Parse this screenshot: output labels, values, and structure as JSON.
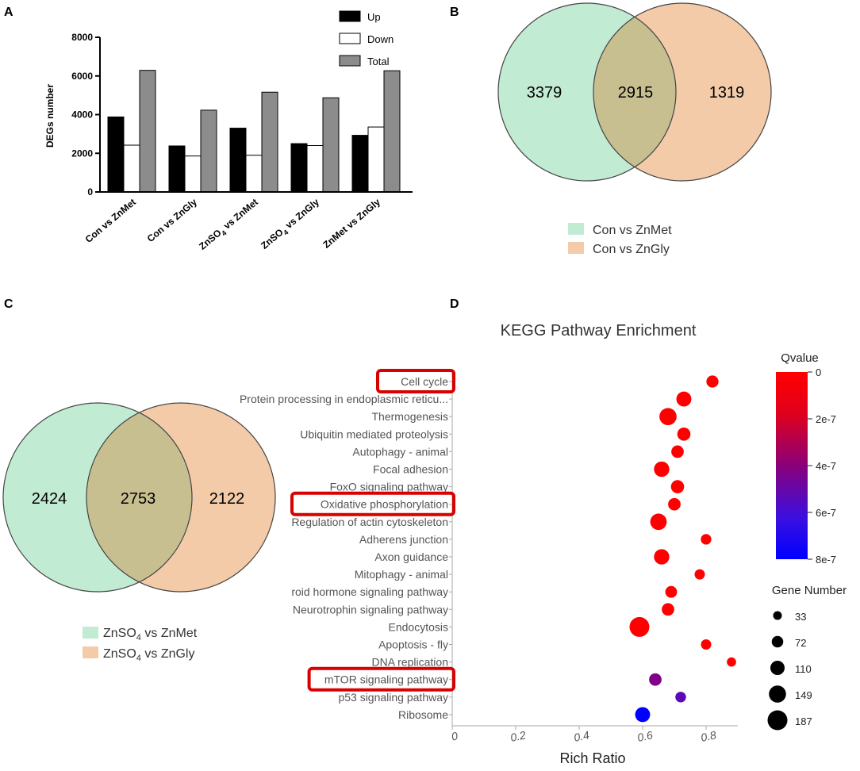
{
  "panels": {
    "a": "A",
    "b": "B",
    "c": "C",
    "d": "D"
  },
  "chart_data": [
    {
      "type": "bar",
      "panel": "A",
      "ylabel": "DEGs number",
      "ylim": [
        0,
        8000
      ],
      "yticks": [
        "0",
        "2000",
        "4000",
        "6000",
        "8000"
      ],
      "categories": [
        "Con vs ZnMet",
        "Con vs ZnGly",
        "ZnSO4 vs ZnMet",
        "ZnSO4 vs ZnGly",
        "ZnMet vs ZnGly"
      ],
      "category_labels": [
        {
          "a": "Con vs ZnMet",
          "sub": "",
          "b": ""
        },
        {
          "a": "Con vs ZnGly",
          "sub": "",
          "b": ""
        },
        {
          "a": "ZnSO",
          "sub": "4",
          "b": " vs ZnMet"
        },
        {
          "a": "ZnSO",
          "sub": "4",
          "b": " vs ZnGly"
        },
        {
          "a": "ZnMet vs ZnGly",
          "sub": "",
          "b": ""
        }
      ],
      "series": [
        {
          "name": "Up",
          "color": "#000000",
          "values": [
            3880,
            2380,
            3300,
            2500,
            2930
          ]
        },
        {
          "name": "Down",
          "color": "#ffffff",
          "values": [
            2420,
            1860,
            1900,
            2400,
            3360
          ]
        },
        {
          "name": "Total",
          "color": "#8c8c8c",
          "values": [
            6290,
            4230,
            5160,
            4870,
            6270
          ]
        }
      ],
      "legend_position": "top-right"
    },
    {
      "type": "venn",
      "panel": "B",
      "sets": [
        {
          "label": "Con vs ZnMet",
          "label_a": "Con vs ZnMet",
          "label_sub": "",
          "label_b": "",
          "color": "#c2ebd3",
          "only": "3379"
        },
        {
          "label": "Con vs ZnGly",
          "label_a": "Con vs ZnGly",
          "label_sub": "",
          "label_b": "",
          "color": "#f3cba9",
          "only": "1319"
        }
      ],
      "intersection": "2915",
      "overlap_color": "#c8bf91"
    },
    {
      "type": "venn",
      "panel": "C",
      "sets": [
        {
          "label": "ZnSO4 vs ZnMet",
          "label_a": "ZnSO",
          "label_sub": "4",
          "label_b": " vs ZnMet",
          "color": "#c2ebd3",
          "only": "2424"
        },
        {
          "label": "ZnSO4 vs ZnGly",
          "label_a": "ZnSO",
          "label_sub": "4",
          "label_b": " vs ZnGly",
          "color": "#f3cba9",
          "only": "2122"
        }
      ],
      "intersection": "2753",
      "overlap_color": "#c8bf91"
    },
    {
      "type": "scatter",
      "panel": "D",
      "title": "KEGG Pathway Enrichment",
      "xlabel": "Rich Ratio",
      "xlim": [
        0,
        0.9
      ],
      "xticks": [
        0,
        0.2,
        0.4,
        0.6,
        0.8
      ],
      "xtick_labels": [
        "0",
        "0.2",
        "0.4",
        "0.6",
        "0.8"
      ],
      "color_title": "Qvalue",
      "color_ticks": [
        "0",
        "2e-7",
        "4e-7",
        "6e-7",
        "8e-7"
      ],
      "color_range": [
        0,
        8e-07
      ],
      "size_title": "Gene Number",
      "size_legend": [
        {
          "label": "33",
          "value": 33
        },
        {
          "label": "72",
          "value": 72
        },
        {
          "label": "110",
          "value": 110
        },
        {
          "label": "149",
          "value": 149
        },
        {
          "label": "187",
          "value": 187
        }
      ],
      "highlighted": [
        "Cell cycle",
        "Oxidative phosphorylation",
        "mTOR signaling pathway"
      ],
      "points": [
        {
          "pathway": "Cell cycle",
          "rich_ratio": 0.82,
          "gene_number": 80,
          "qvalue": 0
        },
        {
          "pathway": "Protein processing in endoplasmic reticu...",
          "rich_ratio": 0.73,
          "gene_number": 120,
          "qvalue": 0
        },
        {
          "pathway": "Thermogenesis",
          "rich_ratio": 0.68,
          "gene_number": 150,
          "qvalue": 0
        },
        {
          "pathway": "Ubiquitin mediated proteolysis",
          "rich_ratio": 0.73,
          "gene_number": 95,
          "qvalue": 0
        },
        {
          "pathway": "Autophagy - animal",
          "rich_ratio": 0.71,
          "gene_number": 85,
          "qvalue": 0
        },
        {
          "pathway": "Focal adhesion",
          "rich_ratio": 0.66,
          "gene_number": 125,
          "qvalue": 0
        },
        {
          "pathway": "FoxO signaling pathway",
          "rich_ratio": 0.71,
          "gene_number": 95,
          "qvalue": 0
        },
        {
          "pathway": "Oxidative phosphorylation",
          "rich_ratio": 0.7,
          "gene_number": 85,
          "qvalue": 0
        },
        {
          "pathway": "Regulation of actin cytoskeleton",
          "rich_ratio": 0.65,
          "gene_number": 140,
          "qvalue": 0
        },
        {
          "pathway": "Adherens junction",
          "rich_ratio": 0.8,
          "gene_number": 58,
          "qvalue": 0
        },
        {
          "pathway": "Axon guidance",
          "rich_ratio": 0.66,
          "gene_number": 125,
          "qvalue": 0
        },
        {
          "pathway": "Mitophagy - animal",
          "rich_ratio": 0.78,
          "gene_number": 55,
          "qvalue": 0
        },
        {
          "pathway": "roid hormone signaling pathway",
          "rich_ratio": 0.69,
          "gene_number": 75,
          "qvalue": 0
        },
        {
          "pathway": "Neurotrophin signaling pathway",
          "rich_ratio": 0.68,
          "gene_number": 85,
          "qvalue": 0
        },
        {
          "pathway": "Endocytosis",
          "rich_ratio": 0.59,
          "gene_number": 187,
          "qvalue": 0
        },
        {
          "pathway": "Apoptosis - fly",
          "rich_ratio": 0.8,
          "gene_number": 55,
          "qvalue": 0
        },
        {
          "pathway": "DNA replication",
          "rich_ratio": 0.88,
          "gene_number": 40,
          "qvalue": 0
        },
        {
          "pathway": "mTOR signaling pathway",
          "rich_ratio": 0.64,
          "gene_number": 85,
          "qvalue": 4.3e-07
        },
        {
          "pathway": "p53 signaling pathway",
          "rich_ratio": 0.72,
          "gene_number": 60,
          "qvalue": 5.3e-07
        },
        {
          "pathway": "Ribosome",
          "rich_ratio": 0.6,
          "gene_number": 120,
          "qvalue": 8e-07
        }
      ]
    }
  ]
}
